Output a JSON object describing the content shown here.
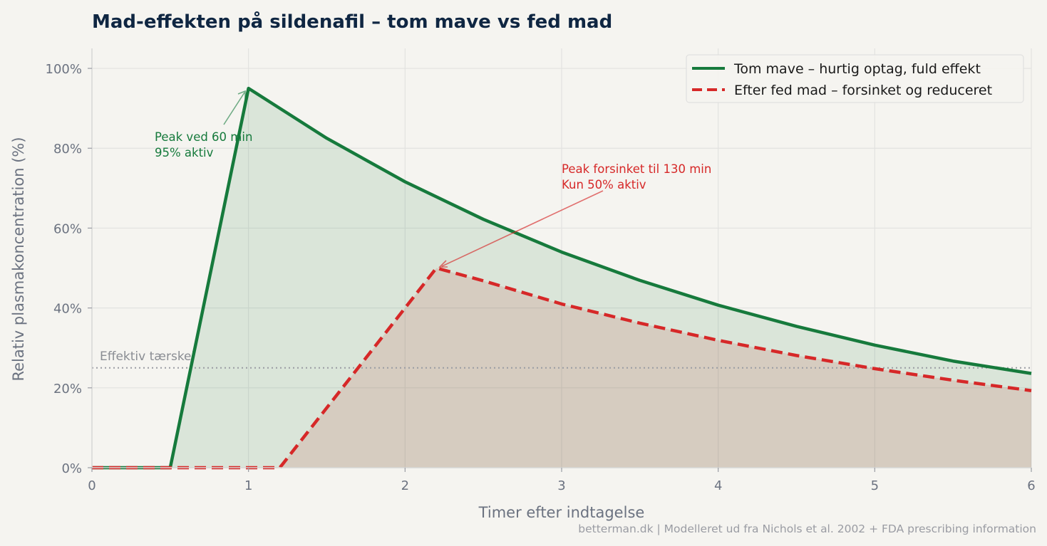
{
  "chart_data": {
    "type": "line",
    "title": "Mad-effekten på sildenafil – tom mave vs fed mad",
    "xlabel": "Timer efter indtagelse",
    "ylabel": "Relativ plasmakoncentration (%)",
    "xlim": [
      0,
      6
    ],
    "ylim": [
      0,
      105
    ],
    "x_ticks": [
      0,
      1,
      2,
      3,
      4,
      5,
      6
    ],
    "y_ticks": [
      0,
      20,
      40,
      60,
      80,
      100
    ],
    "y_tick_labels": [
      "0%",
      "20%",
      "40%",
      "60%",
      "80%",
      "100%"
    ],
    "grid": true,
    "legend_position": "top-right",
    "series": [
      {
        "name": "Tom mave – hurtig optag, fuld effekt",
        "color": "#167a3c",
        "style": "solid",
        "fill": true,
        "points": [
          [
            0,
            0
          ],
          [
            0.5,
            0
          ],
          [
            1.0,
            95
          ],
          [
            1.5,
            82.5
          ],
          [
            2.0,
            71.6
          ],
          [
            2.5,
            62.2
          ],
          [
            3.0,
            54.0
          ],
          [
            3.5,
            46.9
          ],
          [
            4.0,
            40.7
          ],
          [
            4.5,
            35.4
          ],
          [
            5.0,
            30.7
          ],
          [
            5.5,
            26.7
          ],
          [
            6.0,
            23.6
          ]
        ]
      },
      {
        "name": "Efter fed mad – forsinket og reduceret",
        "color": "#d62828",
        "style": "dashed",
        "fill": true,
        "points": [
          [
            0,
            0
          ],
          [
            1.2,
            0
          ],
          [
            2.2,
            50
          ],
          [
            2.5,
            46.8
          ],
          [
            3.0,
            41.0
          ],
          [
            3.5,
            36.2
          ],
          [
            4.0,
            31.9
          ],
          [
            4.5,
            28.1
          ],
          [
            5.0,
            24.8
          ],
          [
            5.5,
            21.9
          ],
          [
            6.0,
            19.3
          ]
        ]
      }
    ],
    "threshold": {
      "value": 25,
      "label": "Effektiv tærskel",
      "color": "#9a9ca3"
    },
    "annotations": [
      {
        "lines": [
          "Peak ved 60 min",
          "95% aktiv"
        ],
        "x": 1.0,
        "y": 95,
        "color": "#167a3c"
      },
      {
        "lines": [
          "Peak forsinket til 130 min",
          "Kun 50% aktiv"
        ],
        "x": 2.2,
        "y": 50,
        "color": "#d62828"
      }
    ],
    "source": "betterman.dk | Modelleret ud fra Nichols et al. 2002 + FDA prescribing information"
  }
}
